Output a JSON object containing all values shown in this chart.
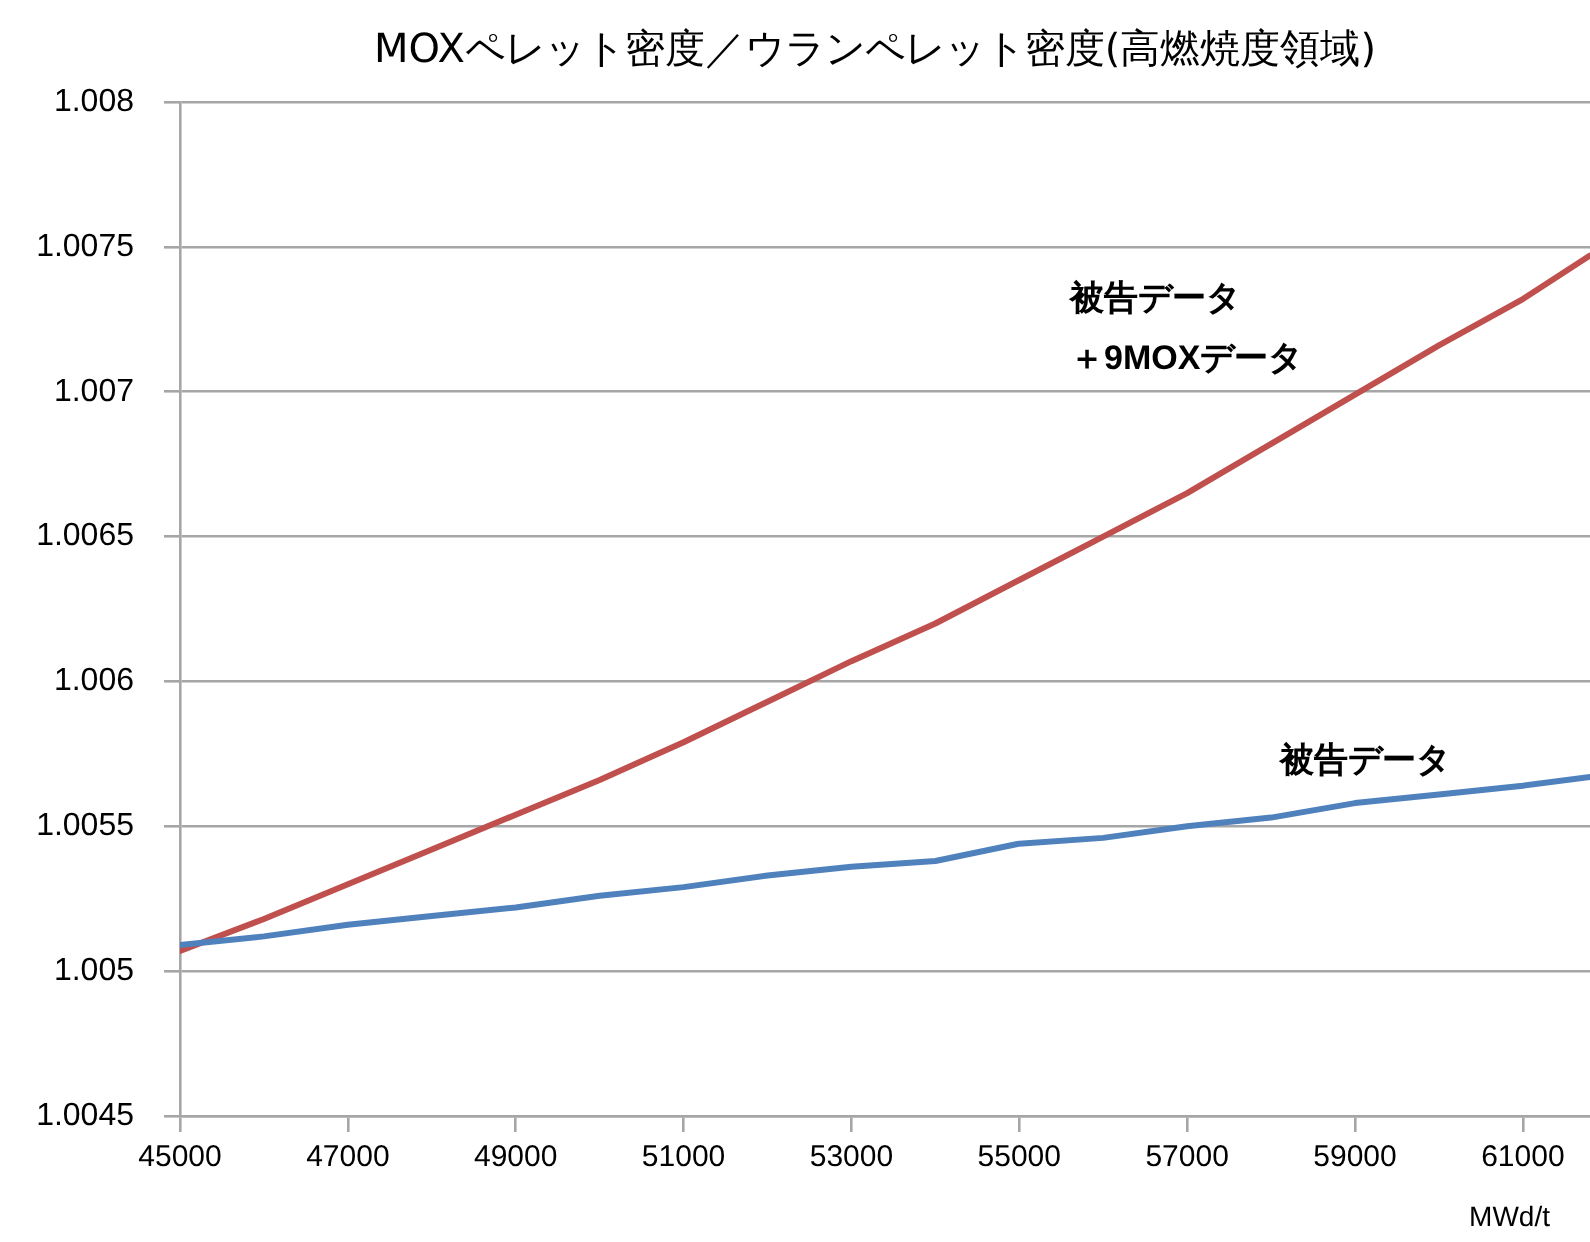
{
  "chart_data": {
    "type": "line",
    "title": "MOXペレット密度／ウランペレット密度(高燃焼度領域)",
    "xlabel": "MWd/t",
    "x": [
      45000,
      46000,
      47000,
      48000,
      49000,
      50000,
      51000,
      52000,
      53000,
      54000,
      55000,
      56000,
      57000,
      58000,
      59000,
      60000,
      61000,
      61800
    ],
    "xlim": [
      45000,
      61800
    ],
    "xticks": [
      45000,
      47000,
      49000,
      51000,
      53000,
      55000,
      57000,
      59000,
      61000
    ],
    "ylim": [
      1.0045,
      1.008
    ],
    "yticks": [
      1.0045,
      1.005,
      1.0055,
      1.006,
      1.0065,
      1.007,
      1.0075,
      1.008
    ],
    "grid": "y",
    "legend": false,
    "marker": "none",
    "line_style": "solid",
    "series": [
      {
        "name": "被告データ",
        "color": "#4f81bd",
        "values": [
          1.00509,
          1.00512,
          1.00516,
          1.00519,
          1.00522,
          1.00526,
          1.00529,
          1.00533,
          1.00536,
          1.00538,
          1.00544,
          1.00546,
          1.0055,
          1.00553,
          1.00558,
          1.00561,
          1.00564,
          1.00567
        ]
      },
      {
        "name": "被告データ＋9MOXデータ",
        "color": "#c0504d",
        "values": [
          1.00507,
          1.00518,
          1.0053,
          1.00542,
          1.00554,
          1.00566,
          1.00579,
          1.00593,
          1.00607,
          1.0062,
          1.00635,
          1.0065,
          1.00665,
          1.00682,
          1.00699,
          1.00716,
          1.00732,
          1.00747
        ]
      }
    ]
  }
}
